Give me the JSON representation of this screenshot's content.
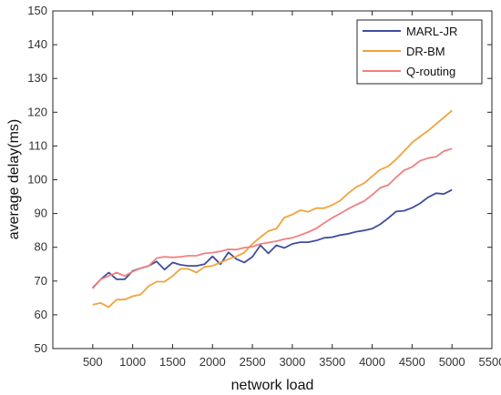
{
  "chart_data": {
    "type": "line",
    "xlabel": "network load",
    "ylabel": "average delay(ms)",
    "xlim": [
      0,
      5500
    ],
    "ylim": [
      50,
      150
    ],
    "xticks": [
      500,
      1000,
      1500,
      2000,
      2500,
      3000,
      3500,
      4000,
      4500,
      5000,
      5500
    ],
    "yticks": [
      50,
      60,
      70,
      80,
      90,
      100,
      110,
      120,
      130,
      140,
      150
    ],
    "grid": false,
    "legend_position": "top-right",
    "x": [
      500,
      600,
      700,
      800,
      900,
      1000,
      1100,
      1200,
      1300,
      1400,
      1500,
      1600,
      1700,
      1800,
      1900,
      2000,
      2100,
      2200,
      2300,
      2400,
      2500,
      2600,
      2700,
      2800,
      2900,
      3000,
      3100,
      3200,
      3300,
      3400,
      3500,
      3600,
      3700,
      3800,
      3900,
      4000,
      4100,
      4200,
      4300,
      4400,
      4500,
      4600,
      4700,
      4800,
      4900,
      5000
    ],
    "series": [
      {
        "name": "MARL-JR",
        "color": "#3F4CA0",
        "values": [
          68,
          70.5,
          72.5,
          70.5,
          70.5,
          73,
          73.8,
          74.5,
          75.8,
          73.4,
          75.5,
          74.8,
          74.5,
          74.5,
          75,
          77.3,
          75,
          78.5,
          76.5,
          75.5,
          77.2,
          80.6,
          78.2,
          80.6,
          79.8,
          81,
          81.5,
          81.5,
          82,
          82.8,
          83,
          83.6,
          84,
          84.6,
          85,
          85.5,
          86.8,
          88.6,
          90.6,
          90.8,
          91.7,
          93,
          94.8,
          96,
          95.8,
          97
        ]
      },
      {
        "name": "DR-BM",
        "color": "#F2A33A",
        "values": [
          63,
          63.5,
          62.3,
          64.5,
          64.5,
          65.5,
          66,
          68.5,
          69.8,
          69.8,
          71.5,
          73.6,
          73.6,
          72.5,
          74.2,
          74.5,
          75.5,
          76.5,
          77.3,
          78.5,
          81,
          83,
          84.8,
          85.5,
          88.8,
          89.7,
          91,
          90.5,
          91.6,
          91.6,
          92.5,
          93.8,
          96,
          97.8,
          99,
          101,
          103,
          104,
          106,
          108.5,
          111,
          112.8,
          114.5,
          116.5,
          118.5,
          120.5
        ]
      },
      {
        "name": "Q-routing",
        "color": "#F08080",
        "values": [
          67.8,
          70.5,
          71.5,
          72.5,
          71.5,
          72.8,
          73.8,
          74.5,
          76.8,
          77.2,
          77,
          77.2,
          77.5,
          77.5,
          78.2,
          78.4,
          78.8,
          79.4,
          79.3,
          79.9,
          80.2,
          81,
          81.4,
          81.8,
          82.4,
          82.8,
          83.6,
          84.5,
          85.6,
          87.2,
          88.7,
          90,
          91.4,
          92.6,
          93.7,
          95.5,
          97.6,
          98.4,
          100.7,
          102.8,
          103.8,
          105.6,
          106.4,
          106.8,
          108.5,
          109.2
        ]
      }
    ]
  }
}
